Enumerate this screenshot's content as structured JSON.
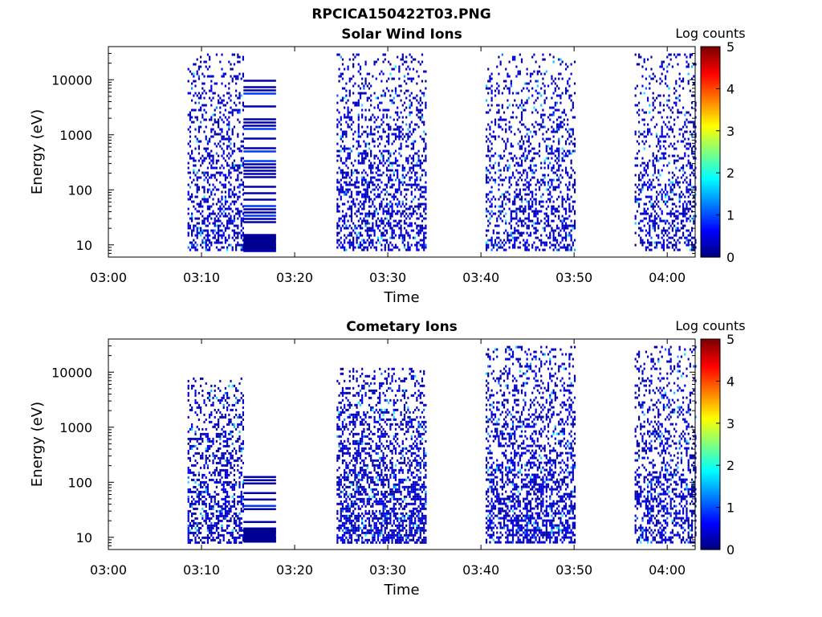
{
  "figure_title": "RPCICA150422T03.PNG",
  "colors": {
    "colormap": [
      "#00007f",
      "#0000ff",
      "#007fff",
      "#00ffff",
      "#7fff7f",
      "#ffff00",
      "#ff7f00",
      "#ff0000",
      "#7f0000"
    ],
    "axis": "#000000"
  },
  "chart_data": [
    {
      "type": "heatmap",
      "title": "Solar Wind Ions",
      "xlabel": "Time",
      "ylabel": "Energy (eV)",
      "y_scale": "log",
      "xlim": [
        "03:00",
        "04:03"
      ],
      "ylim": [
        6,
        40000
      ],
      "x_ticks": [
        "03:00",
        "03:10",
        "03:20",
        "03:30",
        "03:40",
        "03:50",
        "04:00"
      ],
      "y_ticks": [
        "10",
        "100",
        "1000",
        "10000"
      ],
      "colorbar": {
        "label": "Log counts",
        "range": [
          0,
          5
        ],
        "ticks": [
          "0",
          "1",
          "2",
          "3",
          "4",
          "5"
        ]
      },
      "activity_intervals": [
        {
          "start": "03:08.5",
          "end": "03:14.5",
          "emin": 8,
          "emax": 30000,
          "level": 0.6
        },
        {
          "start": "03:14.5",
          "end": "03:18",
          "emin": 8,
          "emax": 10000,
          "level": 0.2
        },
        {
          "start": "03:24.5",
          "end": "03:34",
          "emin": 8,
          "emax": 30000,
          "level": 0.6
        },
        {
          "start": "03:40.5",
          "end": "03:50",
          "emin": 8,
          "emax": 30000,
          "level": 0.5
        },
        {
          "start": "03:56.5",
          "end": "04:03",
          "emin": 8,
          "emax": 30000,
          "level": 0.5
        }
      ]
    },
    {
      "type": "heatmap",
      "title": "Cometary Ions",
      "xlabel": "Time",
      "ylabel": "Energy (eV)",
      "y_scale": "log",
      "xlim": [
        "03:00",
        "04:03"
      ],
      "ylim": [
        6,
        40000
      ],
      "x_ticks": [
        "03:00",
        "03:10",
        "03:20",
        "03:30",
        "03:40",
        "03:50",
        "04:00"
      ],
      "y_ticks": [
        "10",
        "100",
        "1000",
        "10000"
      ],
      "colorbar": {
        "label": "Log counts",
        "range": [
          0,
          5
        ],
        "ticks": [
          "0",
          "1",
          "2",
          "3",
          "4",
          "5"
        ]
      },
      "activity_intervals": [
        {
          "start": "03:08.5",
          "end": "03:14.5",
          "emin": 8,
          "emax": 8000,
          "level": 0.7
        },
        {
          "start": "03:14.5",
          "end": "03:18",
          "emin": 8,
          "emax": 130,
          "level": 0.2
        },
        {
          "start": "03:24.5",
          "end": "03:34",
          "emin": 8,
          "emax": 12000,
          "level": 0.8
        },
        {
          "start": "03:40.5",
          "end": "03:50",
          "emin": 8,
          "emax": 30000,
          "level": 0.7
        },
        {
          "start": "03:56.5",
          "end": "04:03",
          "emin": 8,
          "emax": 30000,
          "level": 0.6
        }
      ]
    }
  ]
}
